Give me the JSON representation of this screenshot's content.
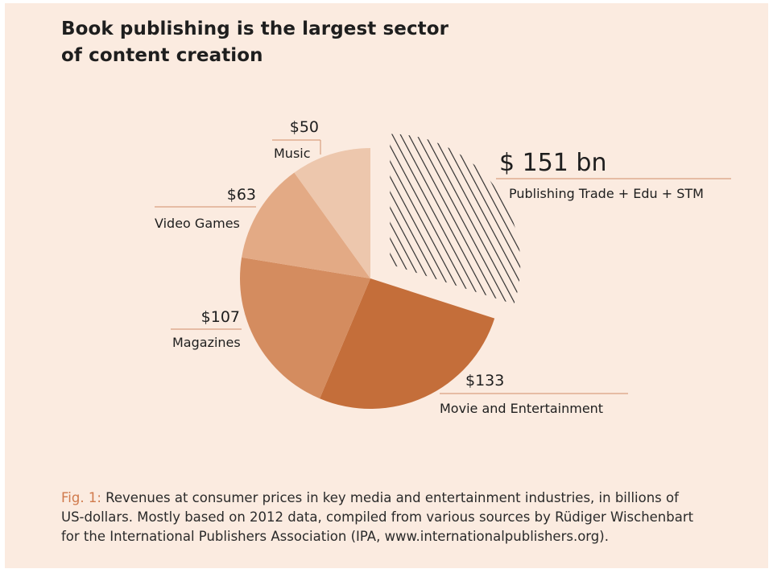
{
  "title": {
    "line1": "Book publishing is the largest sector",
    "line2": "of content creation"
  },
  "chart_data": {
    "type": "pie",
    "slices": [
      {
        "label": "Publishing Trade + Edu + STM",
        "value": 151,
        "value_label": "$ 151 bn",
        "exploded": true,
        "pattern": "hatched"
      },
      {
        "label": "Movie and Entertainment",
        "value": 133,
        "value_label": "$133",
        "color": "#c46e3a"
      },
      {
        "label": "Magazines",
        "value": 107,
        "value_label": "$107",
        "color": "#d48c5f"
      },
      {
        "label": "Video Games",
        "value": 63,
        "value_label": "$63",
        "color": "#e3aa85"
      },
      {
        "label": "Music",
        "value": 50,
        "value_label": "$50",
        "color": "#edc7ad"
      }
    ],
    "unit": "billions of US-dollars"
  },
  "colors": {
    "background": "#fbebe0",
    "hatch": "#2a2a2a",
    "leader_line": "#d9a07f"
  },
  "caption": {
    "label": "Fig. 1:",
    "line1": "Revenues at consumer prices in key media and entertainment industries, in billions of",
    "line2": "US-dollars. Mostly based on 2012 data, compiled from various sources by Rüdiger Wischenbart",
    "line3": "for the International Publishers Association (IPA, www.internationalpublishers.org)."
  }
}
